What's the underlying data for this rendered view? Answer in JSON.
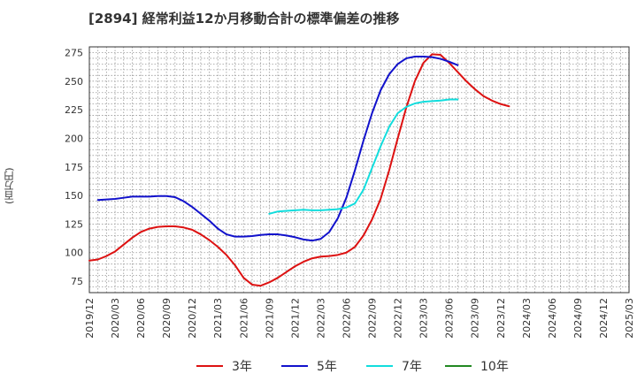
{
  "chart_data": {
    "type": "line",
    "title": "[2894]  経常利益12か月移動合計の標準偏差の推移",
    "ylabel": "(百万円)",
    "xlabel": "",
    "ylim": [
      65,
      280
    ],
    "yticks": [
      75,
      100,
      125,
      150,
      175,
      200,
      225,
      250,
      275
    ],
    "x_tick_labels": [
      "2019/12",
      "2020/03",
      "2020/06",
      "2020/09",
      "2020/12",
      "2021/03",
      "2021/06",
      "2021/09",
      "2021/12",
      "2022/03",
      "2022/06",
      "2022/09",
      "2022/12",
      "2023/03",
      "2023/06",
      "2023/09",
      "2023/12",
      "2024/03",
      "2024/06",
      "2024/09",
      "2024/12",
      "2025/03"
    ],
    "grid": true,
    "legend_position": "bottom",
    "series": [
      {
        "name": "3年",
        "color": "#dd1111",
        "values": [
          93,
          94,
          97,
          101,
          107,
          113,
          118,
          121,
          122.5,
          123,
          123,
          122,
          120,
          116,
          111,
          105,
          98,
          89,
          78,
          72,
          71,
          74,
          78,
          83,
          88,
          92,
          95,
          96.5,
          97,
          98,
          100,
          105,
          115,
          129,
          147,
          172,
          200,
          227,
          250,
          266,
          273.5,
          273,
          266,
          258,
          250,
          243,
          237,
          233,
          230,
          228
        ]
      },
      {
        "name": "5年",
        "color": "#1111cc",
        "values": [
          null,
          146,
          146.5,
          147,
          148,
          149,
          149,
          149,
          149.5,
          149.5,
          148.5,
          145,
          140,
          134,
          128,
          121,
          116,
          114,
          114,
          114.5,
          115.5,
          116,
          116,
          115,
          113.5,
          111.5,
          110.5,
          112,
          118,
          130,
          148,
          172,
          198,
          222,
          242,
          256,
          265,
          270,
          271.5,
          271.5,
          271,
          269.5,
          267,
          264
        ]
      },
      {
        "name": "7年",
        "color": "#11dddd",
        "values": [
          null,
          null,
          null,
          null,
          null,
          null,
          null,
          null,
          null,
          null,
          null,
          null,
          null,
          null,
          null,
          null,
          null,
          null,
          null,
          null,
          null,
          134,
          136,
          136.5,
          137,
          137.5,
          137,
          137,
          137.5,
          138,
          139.5,
          143,
          155,
          174,
          193,
          210,
          222,
          227.5,
          230.5,
          232,
          232.5,
          233,
          234,
          234
        ]
      },
      {
        "name": "10年",
        "color": "#228822",
        "values": []
      }
    ]
  }
}
